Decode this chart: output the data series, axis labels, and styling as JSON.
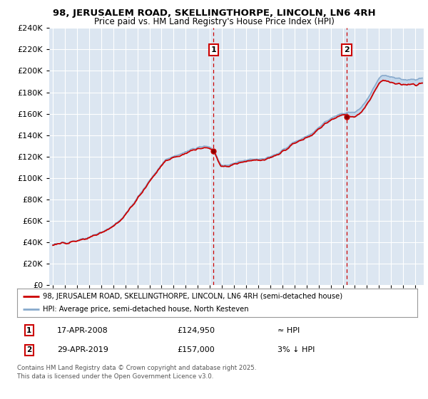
{
  "title_line1": "98, JERUSALEM ROAD, SKELLINGTHORPE, LINCOLN, LN6 4RH",
  "title_line2": "Price paid vs. HM Land Registry's House Price Index (HPI)",
  "background_color": "#ffffff",
  "plot_bg_color": "#dce6f1",
  "grid_color": "#ffffff",
  "sale_color": "#cc0000",
  "hpi_color": "#88aacc",
  "vline_color": "#cc0000",
  "legend_line1": "98, JERUSALEM ROAD, SKELLINGTHORPE, LINCOLN, LN6 4RH (semi-detached house)",
  "legend_line2": "HPI: Average price, semi-detached house, North Kesteven",
  "footer": "Contains HM Land Registry data © Crown copyright and database right 2025.\nThis data is licensed under the Open Government Licence v3.0.",
  "ylim": [
    0,
    240000
  ],
  "ytick_values": [
    0,
    20000,
    40000,
    60000,
    80000,
    100000,
    120000,
    140000,
    160000,
    180000,
    200000,
    220000,
    240000
  ],
  "sale1_year": 2008.29,
  "sale1_price": 124950,
  "sale2_year": 2019.33,
  "sale2_price": 157000,
  "xlim_start": 1994.7,
  "xlim_end": 2025.7
}
